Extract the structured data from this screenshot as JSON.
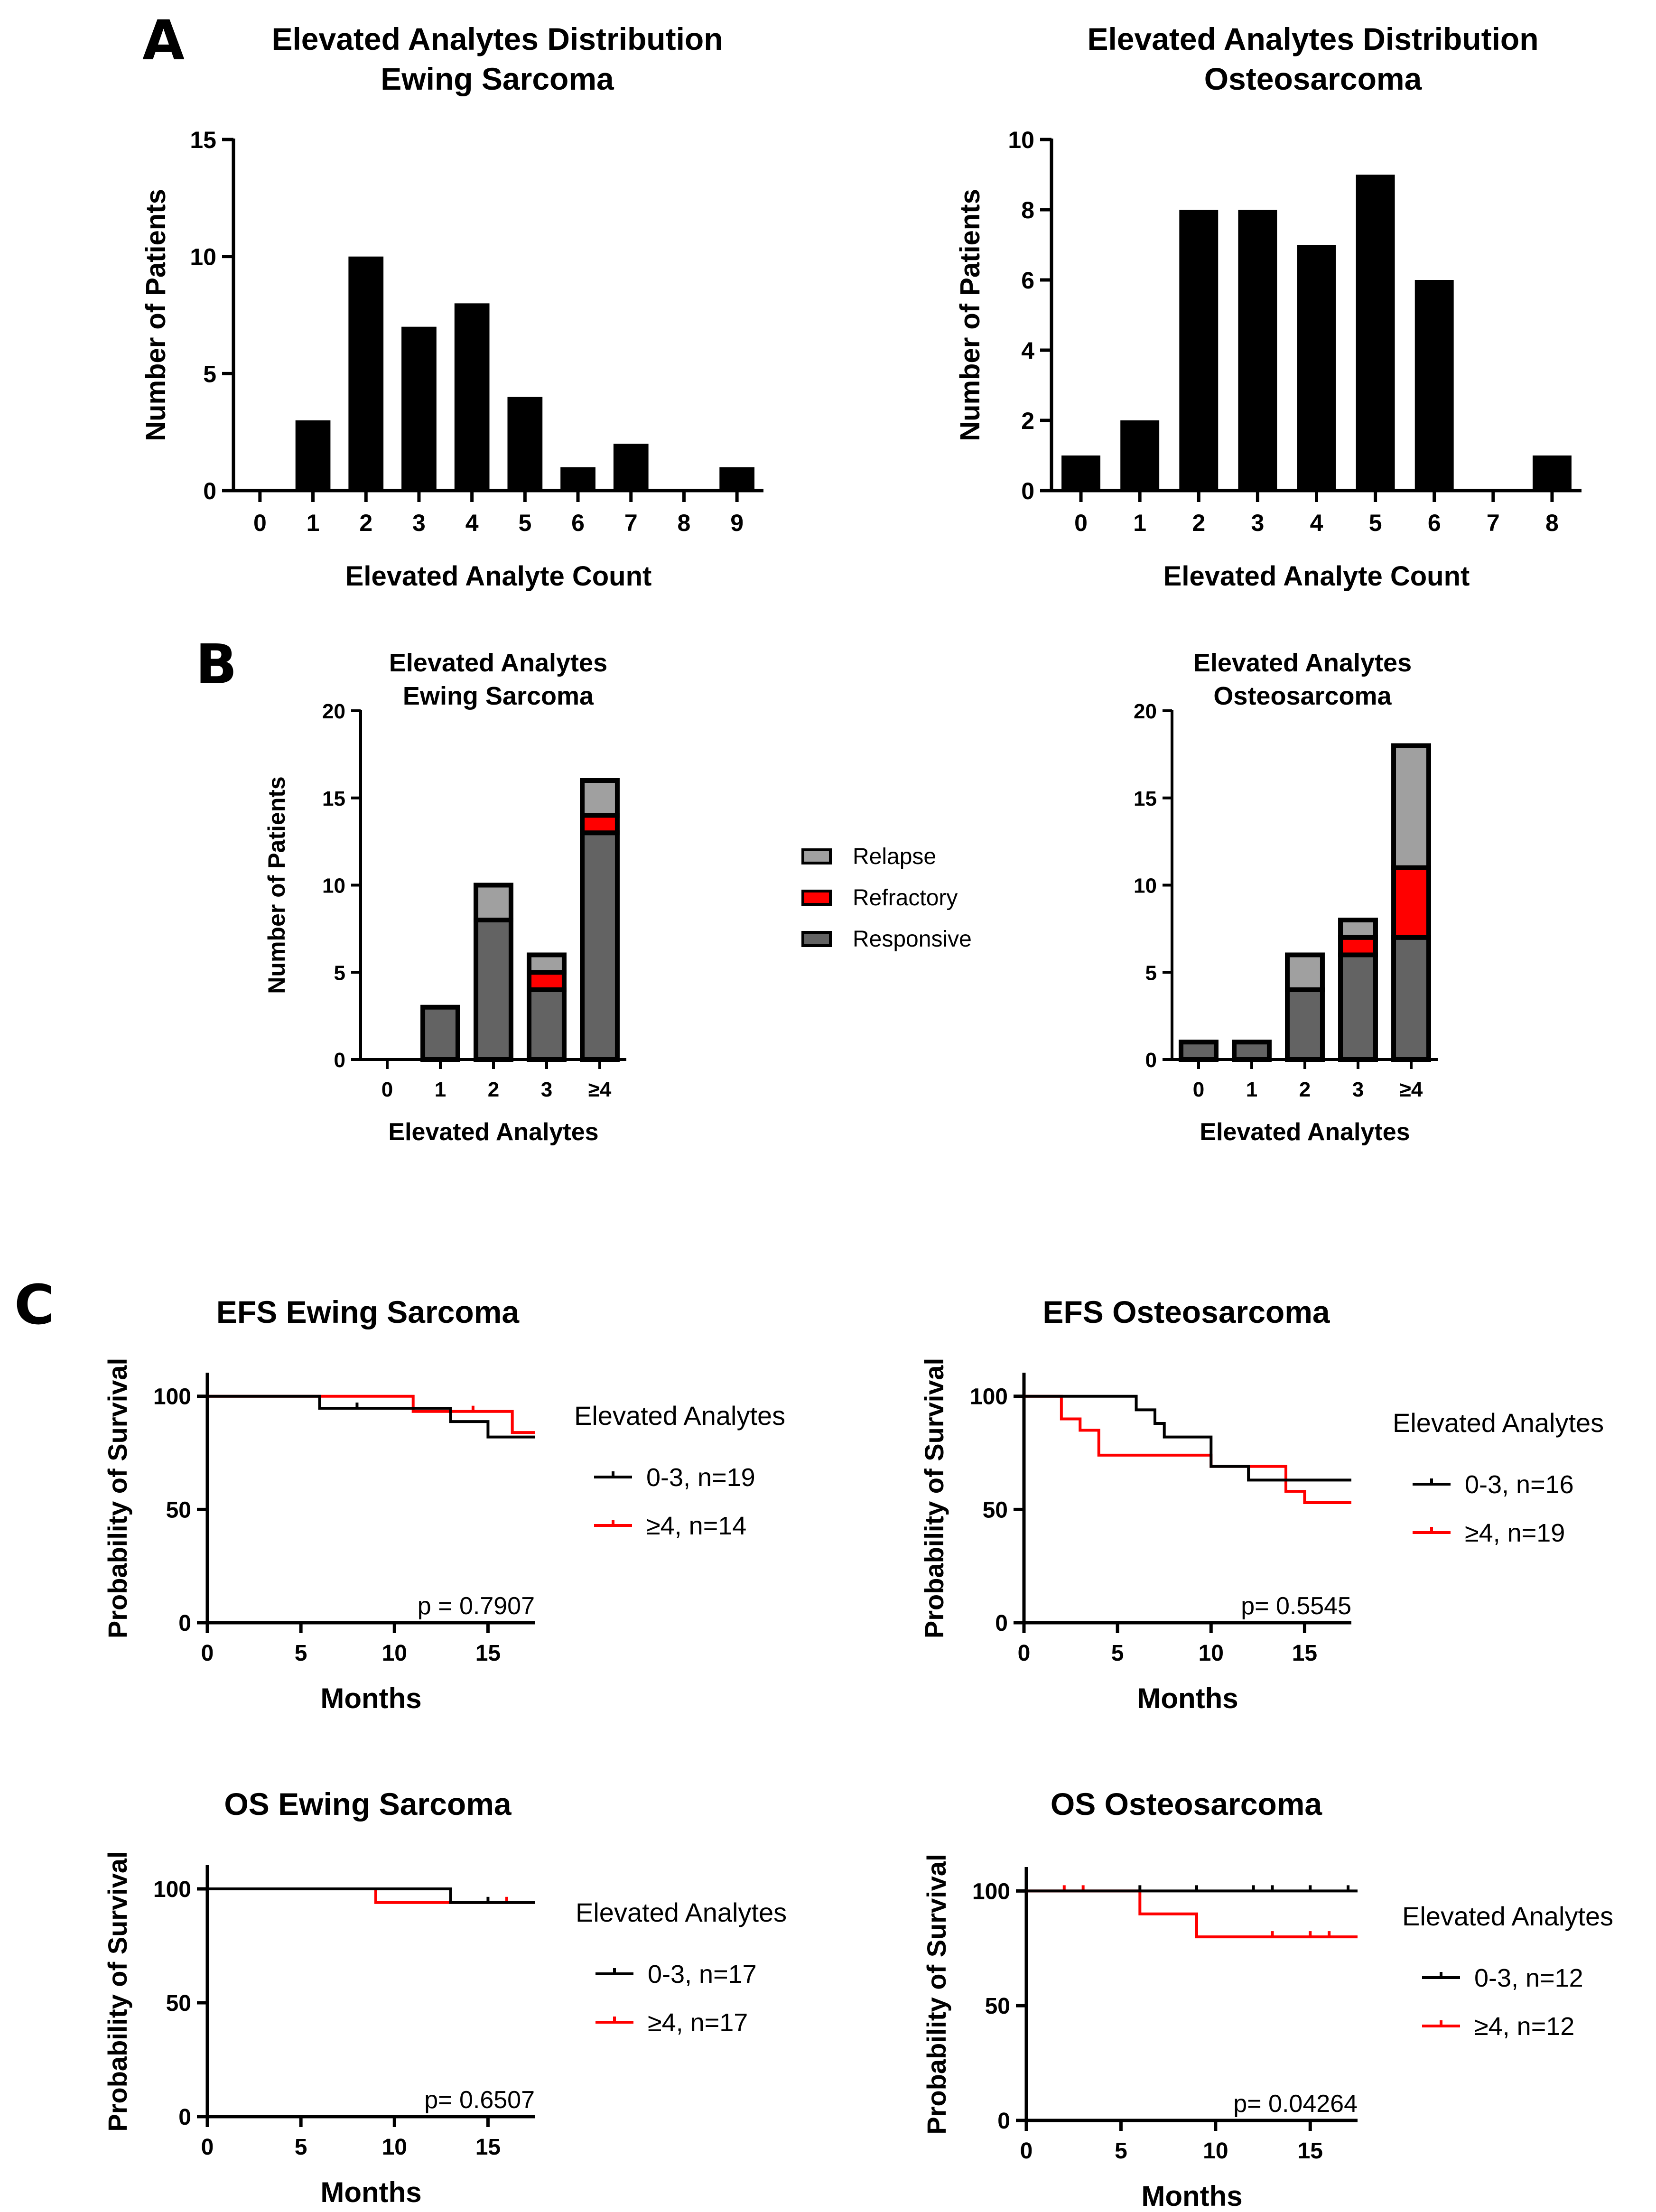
{
  "panels": {
    "a": "A",
    "b": "B",
    "c": "C"
  },
  "colors": {
    "bar": "#000000",
    "relapse": "#A0A0A0",
    "refractory": "#FF0000",
    "responsive": "#636363",
    "low_group": "#000000",
    "high_group": "#FF0000"
  },
  "chart_data": [
    {
      "id": "hist_ewing",
      "type": "bar",
      "title": "Elevated Analytes Distribution\nEwing Sarcoma",
      "xlabel": "Elevated Analyte Count",
      "ylabel": "Number of Patients",
      "categories": [
        "0",
        "1",
        "2",
        "3",
        "4",
        "5",
        "6",
        "7",
        "8",
        "9"
      ],
      "values": [
        0,
        3,
        10,
        7,
        8,
        4,
        1,
        2,
        0,
        1
      ],
      "ylim": [
        0,
        15
      ],
      "yticks": [
        0,
        5,
        10,
        15
      ]
    },
    {
      "id": "hist_osteo",
      "type": "bar",
      "title": "Elevated Analytes Distribution\nOsteosarcoma",
      "xlabel": "Elevated Analyte Count",
      "ylabel": "Number of Patients",
      "categories": [
        "0",
        "1",
        "2",
        "3",
        "4",
        "5",
        "6",
        "7",
        "8"
      ],
      "values": [
        1,
        2,
        8,
        8,
        7,
        9,
        6,
        0,
        1
      ],
      "ylim": [
        0,
        10
      ],
      "yticks": [
        0,
        2,
        4,
        6,
        8,
        10
      ]
    },
    {
      "id": "stack_ewing",
      "type": "bar",
      "stacked": true,
      "title": "Elevated Analytes\nEwing Sarcoma",
      "xlabel": "Elevated  Analytes",
      "ylabel": "Number of Patients",
      "categories": [
        "0",
        "1",
        "2",
        "3",
        "≥4"
      ],
      "series": [
        {
          "name": "Responsive",
          "values": [
            0,
            3,
            8,
            4,
            13
          ]
        },
        {
          "name": "Refractory",
          "values": [
            0,
            0,
            0,
            1,
            1
          ]
        },
        {
          "name": "Relapse",
          "values": [
            0,
            0,
            2,
            1,
            2
          ]
        }
      ],
      "ylim": [
        0,
        20
      ],
      "yticks": [
        0,
        5,
        10,
        15,
        20
      ]
    },
    {
      "id": "stack_osteo",
      "type": "bar",
      "stacked": true,
      "title": "Elevated Analytes\nOsteosarcoma",
      "xlabel": "Elevated  Analytes",
      "ylabel": "",
      "categories": [
        "0",
        "1",
        "2",
        "3",
        "≥4"
      ],
      "series": [
        {
          "name": "Responsive",
          "values": [
            1,
            1,
            4,
            6,
            7
          ]
        },
        {
          "name": "Refractory",
          "values": [
            0,
            0,
            0,
            1,
            4
          ]
        },
        {
          "name": "Relapse",
          "values": [
            0,
            0,
            2,
            1,
            7
          ]
        }
      ],
      "ylim": [
        0,
        20
      ],
      "yticks": [
        0,
        5,
        10,
        15,
        20
      ]
    },
    {
      "id": "km_efs_ewing",
      "type": "line",
      "step": true,
      "title": "EFS Ewing Sarcoma",
      "xlabel": "Months",
      "ylabel": "Probability of Survival",
      "xlim": [
        0,
        17.5
      ],
      "ylim": [
        0,
        110
      ],
      "xticks": [
        0,
        5,
        10,
        15
      ],
      "yticks": [
        0,
        50,
        100
      ],
      "legend_title": "Elevated Analytes",
      "pvalue": "p = 0.7907",
      "series": [
        {
          "name": "0-3, n=19",
          "x": [
            0,
            6,
            13,
            15,
            17.5
          ],
          "y": [
            100,
            94.7,
            88.8,
            82,
            82
          ],
          "censor": [
            [
              8,
              94.7
            ]
          ]
        },
        {
          "name": "≥4, n=14",
          "x": [
            0,
            11,
            15,
            16.3,
            17.5
          ],
          "y": [
            100,
            93.3,
            93.3,
            84,
            84
          ],
          "censor": [
            [
              14.2,
              93.3
            ]
          ]
        }
      ]
    },
    {
      "id": "km_efs_osteo",
      "type": "line",
      "step": true,
      "title": "EFS Osteosarcoma",
      "xlabel": "Months",
      "ylabel": "Probability of Survival",
      "xlim": [
        0,
        17.5
      ],
      "ylim": [
        0,
        110
      ],
      "xticks": [
        0,
        5,
        10,
        15
      ],
      "yticks": [
        0,
        50,
        100
      ],
      "legend_title": "Elevated Analytes",
      "pvalue": "p= 0.5545",
      "series": [
        {
          "name": "0-3, n=16",
          "x": [
            0,
            6,
            7,
            7.5,
            8,
            10,
            12,
            17.5
          ],
          "y": [
            100,
            94,
            88,
            82,
            82,
            69,
            63,
            63
          ],
          "censor": []
        },
        {
          "name": "≥4, n=19",
          "x": [
            0,
            2,
            3,
            4,
            10,
            14,
            15,
            17.5
          ],
          "y": [
            100,
            90,
            85,
            74,
            69,
            58,
            53,
            53
          ],
          "censor": []
        }
      ]
    },
    {
      "id": "km_os_ewing",
      "type": "line",
      "step": true,
      "title": "OS Ewing Sarcoma",
      "xlabel": "Months",
      "ylabel": "Probability of Survival",
      "xlim": [
        0,
        17.5
      ],
      "ylim": [
        0,
        110
      ],
      "xticks": [
        0,
        5,
        10,
        15
      ],
      "yticks": [
        0,
        50,
        100
      ],
      "legend_title": "Elevated Analytes",
      "pvalue": "p= 0.6507",
      "series": [
        {
          "name": "0-3, n=17",
          "x": [
            0,
            13,
            17.5
          ],
          "y": [
            100,
            94,
            94
          ],
          "censor": [
            [
              15,
              94
            ]
          ]
        },
        {
          "name": "≥4, n=17",
          "x": [
            0,
            9,
            17.5
          ],
          "y": [
            100,
            94,
            94
          ],
          "censor": [
            [
              16,
              94
            ]
          ]
        }
      ]
    },
    {
      "id": "km_os_osteo",
      "type": "line",
      "step": true,
      "title": "OS Osteosarcoma",
      "xlabel": "Months",
      "ylabel": "Probability of Survival",
      "xlim": [
        0,
        17.5
      ],
      "ylim": [
        0,
        110
      ],
      "xticks": [
        0,
        5,
        10,
        15
      ],
      "yticks": [
        0,
        50,
        100
      ],
      "legend_title": "Elevated Analytes",
      "pvalue": "p=  0.04264",
      "series": [
        {
          "name": "0-3, n=12",
          "x": [
            0,
            17.5
          ],
          "y": [
            100,
            100
          ],
          "censor": [
            [
              6,
              100
            ],
            [
              9,
              100
            ],
            [
              12,
              100
            ],
            [
              13,
              100
            ],
            [
              15,
              100
            ],
            [
              17,
              100
            ]
          ]
        },
        {
          "name": "≥4, n=12",
          "x": [
            0,
            6,
            9,
            17.5
          ],
          "y": [
            100,
            90,
            80,
            80
          ],
          "censor": [
            [
              2,
              100
            ],
            [
              3,
              100
            ],
            [
              13,
              80
            ],
            [
              15,
              80
            ],
            [
              16,
              80
            ]
          ]
        }
      ]
    }
  ]
}
